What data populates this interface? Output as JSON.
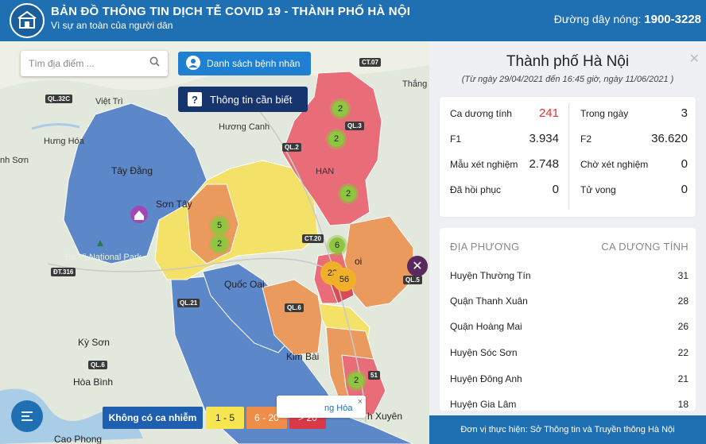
{
  "header": {
    "title": "BẢN ĐỒ THÔNG TIN DỊCH TỄ COVID 19 - THÀNH PHỐ HÀ NỘI",
    "subtitle": "Vì sự an toàn của người dân",
    "hotline_label": "Đường dây nóng:",
    "hotline_number": "1900-3228"
  },
  "map": {
    "search_placeholder": "Tìm địa điểm ...",
    "patient_list_button": "Danh sách bệnh nhân",
    "info_button": "Thông tin cần biết",
    "places": [
      "Việt Trì",
      "Hương Canh",
      "Hưng Hóa",
      "nh Sơn",
      "Tây Đằng",
      "Sơn Tây",
      "Ba Vì National Park",
      "Quốc Oai",
      "Kim Bài",
      "Kỳ Sơn",
      "Hòa Bình",
      "Cao Phong",
      "Thắng",
      "HAN",
      "oi",
      "h Xuyên"
    ],
    "roads": [
      "CT.07",
      "QL.32C",
      "QL.2",
      "QL.3",
      "CT.20",
      "ĐT.316",
      "QL.21",
      "QL.6",
      "QL.6",
      "QL.5",
      "51"
    ],
    "clusters": [
      "2",
      "2",
      "2",
      "5",
      "2",
      "6",
      "22",
      "56",
      "2"
    ],
    "popup_text": "ng Hòa",
    "popup_close": "×",
    "legend": {
      "none": "Không có ca nhiễm",
      "low": "1 - 5",
      "mid": "6 - 20",
      "high": "> 20"
    },
    "legend_colors": {
      "none": "#1f5fb0",
      "low": "#f7e64f",
      "mid": "#ee8e4a",
      "high": "#d93a48"
    }
  },
  "panel": {
    "title": "Thành phố Hà Nội",
    "date_range": "(Từ ngày 29/04/2021 đến 16:45 giờ, ngày 11/06/2021 )",
    "close": "✕",
    "stats_left": [
      {
        "label": "Ca dương tính",
        "value": "241"
      },
      {
        "label": "F1",
        "value": "3.934"
      },
      {
        "label": "Mẫu xét nghiệm",
        "value": "2.748"
      },
      {
        "label": "Đã hồi phục",
        "value": "0"
      }
    ],
    "stats_right": [
      {
        "label": "Trong ngày",
        "value": "3"
      },
      {
        "label": "F2",
        "value": "36.620"
      },
      {
        "label": "Chờ xét nghiệm",
        "value": "0"
      },
      {
        "label": "Tử vong",
        "value": "0"
      }
    ],
    "list_header": {
      "locality": "ĐỊA PHƯƠNG",
      "positive": "CA DƯƠNG TÍNH"
    },
    "rows": [
      {
        "name": "Huyện Thường Tín",
        "count": "31"
      },
      {
        "name": "Quận Thanh Xuân",
        "count": "28"
      },
      {
        "name": "Quận Hoàng Mai",
        "count": "26"
      },
      {
        "name": "Huyện Sóc Sơn",
        "count": "22"
      },
      {
        "name": "Huyện Đông Anh",
        "count": "21"
      },
      {
        "name": "Huyện Gia Lâm",
        "count": "18"
      }
    ],
    "footer": "Đơn vị thực hiện: Sở Thông tin và Truyền thông Hà Nội"
  }
}
